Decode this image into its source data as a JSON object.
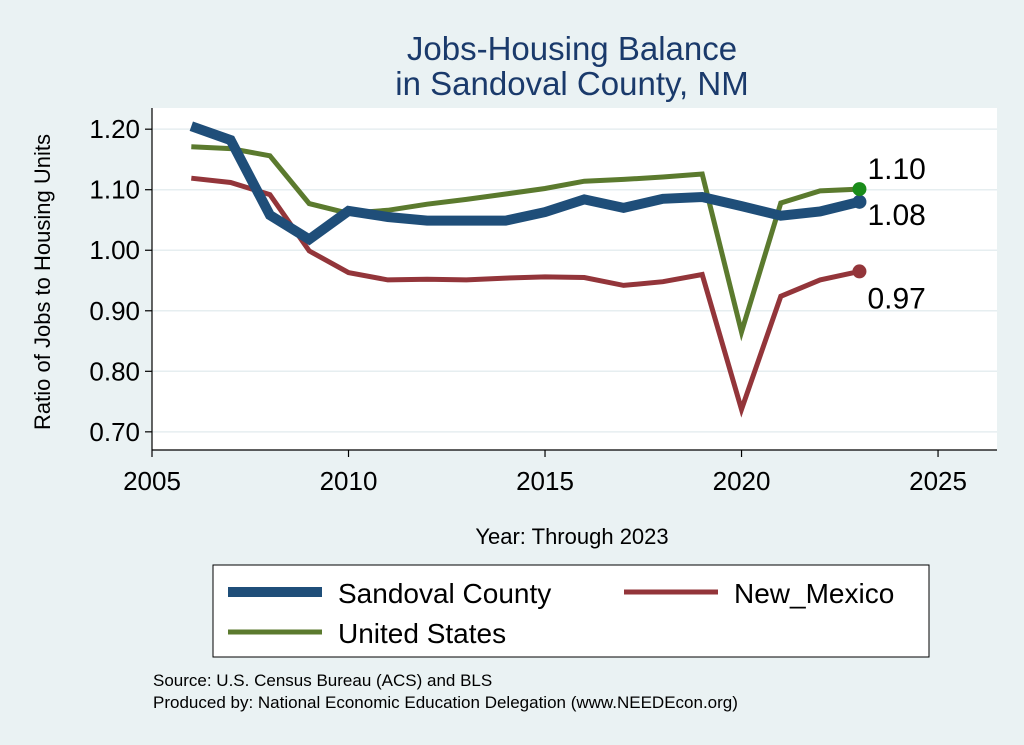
{
  "chart_data": {
    "type": "line",
    "title": "Jobs-Housing Balance",
    "subtitle": "in Sandoval County, NM",
    "xlabel": "Year: Through 2023",
    "ylabel": "Ratio of Jobs to Housing Units",
    "xlim": [
      2005,
      2026.5
    ],
    "ylim": [
      0.67,
      1.235
    ],
    "xticks": [
      2005,
      2010,
      2015,
      2020,
      2025
    ],
    "yticks": [
      0.7,
      0.8,
      0.9,
      1.0,
      1.1,
      1.2
    ],
    "ytick_labels": [
      "0.70",
      "0.80",
      "0.90",
      "1.00",
      "1.10",
      "1.20"
    ],
    "x": [
      2006,
      2007,
      2008,
      2009,
      2010,
      2011,
      2012,
      2013,
      2014,
      2015,
      2016,
      2017,
      2018,
      2019,
      2020,
      2021,
      2022,
      2023
    ],
    "grid": true,
    "legend_position": "bottom",
    "series": [
      {
        "name": "Sandoval County",
        "color": "#1f4e79",
        "values": [
          1.205,
          1.182,
          1.058,
          1.018,
          1.065,
          1.055,
          1.049,
          1.049,
          1.049,
          1.063,
          1.084,
          1.07,
          1.085,
          1.088,
          1.073,
          1.057,
          1.064,
          1.08
        ],
        "end_label": "1.08",
        "end_marker": "#1f4e79"
      },
      {
        "name": "New_Mexico",
        "color": "#93353a",
        "values": [
          1.119,
          1.112,
          1.092,
          0.999,
          0.963,
          0.951,
          0.952,
          0.951,
          0.954,
          0.956,
          0.955,
          0.942,
          0.948,
          0.96,
          0.737,
          0.924,
          0.951,
          0.965
        ],
        "end_label": "0.97",
        "end_marker": "#93353a"
      },
      {
        "name": "United States",
        "color": "#5b7a2e",
        "values": [
          1.171,
          1.168,
          1.156,
          1.077,
          1.061,
          1.066,
          1.076,
          1.084,
          1.093,
          1.102,
          1.114,
          1.117,
          1.121,
          1.126,
          0.865,
          1.078,
          1.098,
          1.101
        ],
        "end_label": "1.10",
        "end_marker": "#1a8c1a"
      }
    ],
    "source_note": "Source: U.S. Census Bureau (ACS) and BLS",
    "producer_note": "Produced by: National Economic Education Delegation (www.NEEDEcon.org)"
  }
}
